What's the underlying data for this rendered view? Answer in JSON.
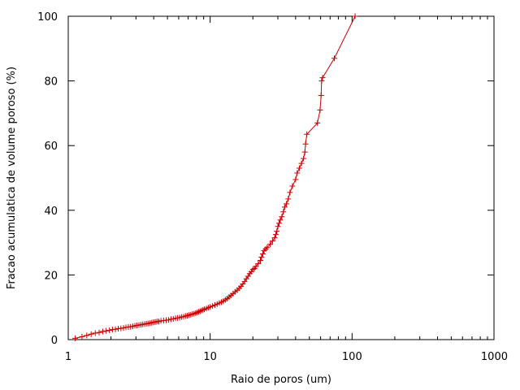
{
  "chart_data": {
    "type": "line",
    "title": "",
    "xlabel": "Raio de poros (um)",
    "ylabel": "Fracao acumulatica de volume poroso (%)",
    "xscale": "log",
    "xlim": [
      1,
      1000
    ],
    "ylim": [
      0,
      100
    ],
    "x_ticks": [
      "1",
      "10",
      "100",
      "1000"
    ],
    "y_ticks": [
      "0",
      "20",
      "40",
      "60",
      "80",
      "100"
    ],
    "grid": false,
    "legend": "none",
    "series_color": "#cc0000",
    "marker": "plus",
    "series": [
      {
        "x": [
          1.12,
          1.25,
          1.35,
          1.45,
          1.55,
          1.65,
          1.75,
          1.85,
          1.95,
          2.05,
          2.15,
          2.25,
          2.35,
          2.45,
          2.55,
          2.65,
          2.75,
          2.85,
          2.95,
          3.05,
          3.15,
          3.25,
          3.35,
          3.45,
          3.55,
          3.65,
          3.75,
          3.85,
          3.95,
          4.05,
          4.15,
          4.25,
          4.35,
          4.5,
          4.7,
          4.9,
          5.1,
          5.3,
          5.5,
          5.7,
          5.9,
          6.1,
          6.3,
          6.5,
          6.7,
          6.9,
          7.1,
          7.3,
          7.5,
          7.7,
          7.9,
          8.1,
          8.3,
          8.5,
          8.7,
          8.9,
          9.1,
          9.4,
          9.7,
          10.0,
          10.4,
          10.8,
          11.2,
          11.6,
          12.0,
          12.4,
          12.8,
          13.2,
          13.6,
          14.0,
          14.5,
          15.0,
          15.5,
          16.0,
          16.5,
          17.0,
          17.5,
          18.0,
          18.5,
          19.0,
          19.5,
          20.0,
          20.5,
          21.0,
          21.8,
          22.6,
          23.0,
          23.5,
          24.0,
          24.6,
          25.2,
          26.5,
          27.5,
          28.5,
          29.0,
          29.5,
          30.0,
          30.6,
          31.2,
          32.0,
          32.8,
          33.5,
          34.5,
          35.5,
          36.5,
          38.0,
          40.0,
          41.0,
          42.5,
          44.0,
          45.5,
          46.5,
          47.0,
          48.0,
          57.0,
          59.5,
          60.5,
          61.0,
          62.0,
          75.0,
          105.0
        ],
        "y": [
          0.4,
          0.9,
          1.3,
          1.7,
          2.0,
          2.2,
          2.5,
          2.7,
          2.9,
          3.1,
          3.2,
          3.4,
          3.5,
          3.6,
          3.8,
          3.9,
          4.0,
          4.1,
          4.3,
          4.4,
          4.5,
          4.6,
          4.7,
          4.8,
          4.9,
          5.0,
          5.1,
          5.2,
          5.3,
          5.4,
          5.5,
          5.6,
          5.6,
          5.8,
          5.9,
          6.0,
          6.1,
          6.3,
          6.4,
          6.6,
          6.7,
          6.8,
          7.0,
          7.1,
          7.3,
          7.4,
          7.6,
          7.7,
          7.9,
          8.0,
          8.2,
          8.4,
          8.6,
          8.8,
          9.0,
          9.2,
          9.4,
          9.6,
          9.9,
          10.1,
          10.4,
          10.7,
          11.0,
          11.3,
          11.6,
          11.9,
          12.3,
          12.7,
          13.2,
          13.7,
          14.2,
          14.8,
          15.3,
          15.9,
          16.5,
          17.2,
          18.0,
          18.8,
          19.6,
          20.4,
          21.0,
          21.7,
          22.0,
          22.6,
          23.5,
          24.5,
          25.5,
          26.5,
          27.5,
          28.0,
          28.5,
          29.5,
          30.5,
          31.5,
          32.5,
          33.5,
          35.0,
          36.0,
          37.0,
          38.0,
          39.5,
          41.0,
          42.0,
          43.5,
          45.5,
          47.5,
          49.5,
          51.5,
          53.0,
          54.5,
          56.0,
          58.0,
          60.5,
          63.5,
          67.0,
          71.0,
          75.5,
          80.0,
          81.0,
          87.0,
          100.0
        ]
      }
    ]
  }
}
